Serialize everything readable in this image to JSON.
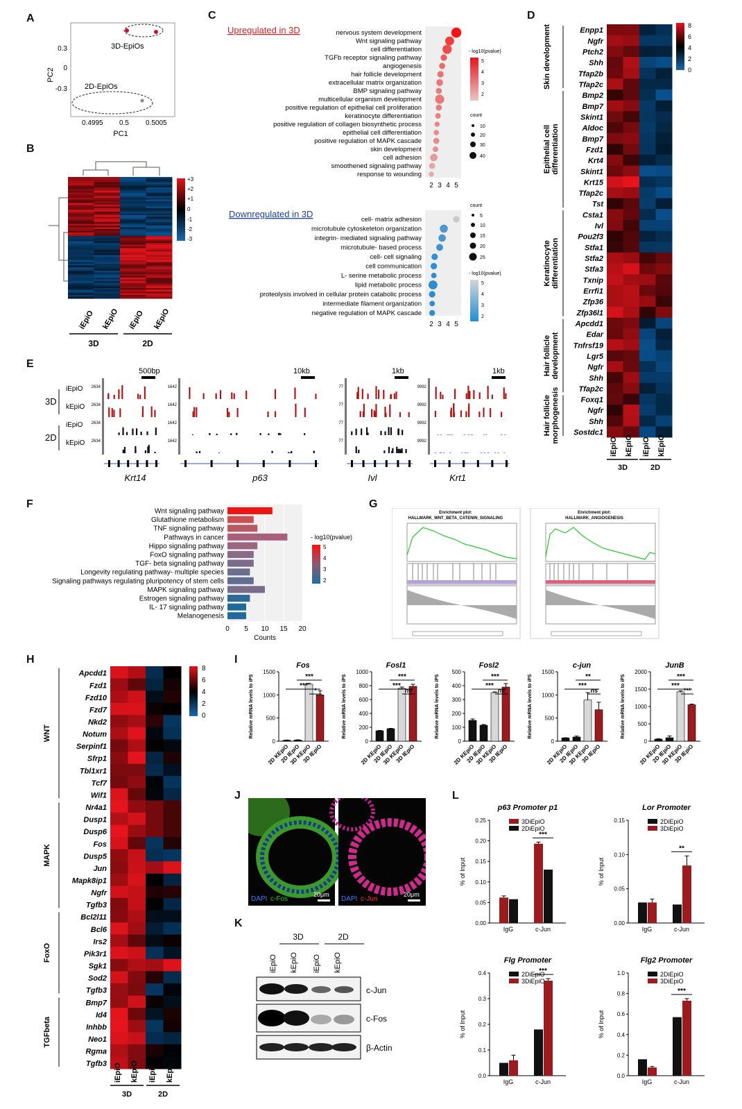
{
  "panel_letters": [
    "A",
    "B",
    "C",
    "D",
    "E",
    "F",
    "G",
    "H",
    "I",
    "J",
    "K",
    "L"
  ],
  "colors": {
    "red": "#c8102e",
    "dark_red": "#9b1b1e",
    "gray_bar": "#cfcfcf",
    "black": "#111111",
    "blue": "#1f5fa0",
    "heat_low": "#0a4d8c",
    "heat_mid": "#000000",
    "heat_high": "#e8141c",
    "green": "#22cc22"
  },
  "panel_a": {
    "xlabel": "PC1",
    "ylabel": "PC2",
    "x_ticks": [
      "0.4995",
      "0.5",
      "0.5005"
    ],
    "y_ticks": [
      "0.3",
      "0",
      "-0.3"
    ],
    "group_labels": [
      "3D-EpiOs",
      "2D-EpiOs"
    ]
  },
  "panel_b": {
    "scale_ticks": [
      "+3",
      "+2",
      "+1",
      "0",
      "-1",
      "-2",
      "-3"
    ],
    "columns": [
      "iEpiO",
      "kEpiO",
      "iEpiO",
      "kEpiO"
    ],
    "groups": [
      "3D",
      "2D"
    ]
  },
  "panel_c": {
    "up_title": "Upregulated  in 3D",
    "up_terms": [
      "nervous system development",
      "Wnt signaling pathway",
      "cell differentiation",
      "TGFb receptor signaling pathway",
      "angiogenesis",
      "hair follicle development",
      "extracellular matrix organization",
      "BMP signaling pathway",
      "multicellular organism development",
      "positive regulation of epithelial cell proliferation",
      "keratinocyte differentiation",
      "positive regulation of collagen biosynthetic process",
      "epithelial cell differentiation",
      "positive regulation of MAPK cascade",
      "skin development",
      "cell adhesion",
      "smoothened signaling pathway",
      "response to wounding"
    ],
    "up_x_ticks": [
      "2",
      "3",
      "4",
      "5"
    ],
    "up_legend_title": "- log10(pvalue)",
    "up_legend_ticks": [
      "5",
      "4",
      "3",
      "2"
    ],
    "count_title": "count",
    "up_count_ticks": [
      "10",
      "20",
      "30",
      "40"
    ],
    "down_title": "Downregulated  in 3D",
    "down_terms": [
      "cell- matrix adhesion",
      "microtubule cytoskeleton organization",
      "integrin- mediated signaling pathway",
      "microtubule- based process",
      "cell- cell signaling",
      "cell communication",
      "L- serine metabolic process",
      "lipid metabolic process",
      "proteolysis involved in cellular protein catabolic process",
      "intermediate filament organization",
      "negative regulation of MAPK cascade"
    ],
    "down_x_ticks": [
      "2",
      "3",
      "4",
      "5"
    ],
    "down_count_ticks": [
      "5",
      "10",
      "15",
      "20",
      "25"
    ],
    "down_legend_ticks": [
      "5",
      "4",
      "3",
      "2"
    ]
  },
  "panel_d": {
    "groups": [
      "Skin development",
      "Epithelial cell differentiation",
      "Keratinocyte differentiation",
      "Hair follicle development",
      "Hair follicle morphogenesis"
    ],
    "genes": [
      "Enpp1",
      "Ngfr",
      "Ptch2",
      "Shh",
      "Tfap2b",
      "Tfap2c",
      "Bmp2",
      "Bmp7",
      "Skint1",
      "Aldoc",
      "Bmp7",
      "Fzd1",
      "Krt4",
      "Skint1",
      "Krt15",
      "Tfap2c",
      "Tst",
      "Csta1",
      "Ivl",
      "Pou2f3",
      "Stfa1",
      "Stfa2",
      "Stfa3",
      "Txnip",
      "Errfi1",
      "Zfp36",
      "Zfp36l1",
      "Apcdd1",
      "Edar",
      "Tnfrsf19",
      "Lgr5",
      "Ngfr",
      "Shh",
      "Tfap2c",
      "Foxq1",
      "Ngfr",
      "Shh",
      "Sostdc1"
    ],
    "scale_ticks": [
      "8",
      "6",
      "4",
      "2",
      "0"
    ],
    "columns": [
      "iEpiO",
      "kEpiO",
      "iEpiO",
      "kEpiO"
    ],
    "col_groups": [
      "3D",
      "2D"
    ]
  },
  "panel_e": {
    "scale_labels": [
      "500bp",
      "10kb",
      "1kb",
      "1kb"
    ],
    "genes": [
      "Krt14",
      "p63",
      "Ivl",
      "Krt1"
    ],
    "row_labels": [
      "iEpiO",
      "kEpiO",
      "iEpiO",
      "kEpiO"
    ],
    "row_groups": [
      "3D",
      "2D"
    ],
    "track_max": [
      "2634",
      "1642",
      "77",
      "9992"
    ]
  },
  "panel_f": {
    "terms": [
      "Wnt signaling pathway",
      "Glutathione metabolism",
      "TNF signaling pathway",
      "Pathways in cancer",
      "Hippo signaling pathway",
      "FoxO signaling pathway",
      "TGF- beta signaling pathway",
      "Longevity regulating pathway- multiple species",
      "Signaling pathways regulating pluripotency of stem cells",
      "MAPK signaling pathway",
      "Estrogen signaling pathway",
      "IL- 17 signaling pathway",
      "Melanogenesis"
    ],
    "x_ticks": [
      "0",
      "5",
      "10",
      "15",
      "20"
    ],
    "xlabel": "Counts",
    "legend_title": "- log10(pvalue)",
    "legend_ticks": [
      "5",
      "4",
      "3",
      "2"
    ]
  },
  "panel_g": {
    "left_header": "Enrichment plot:",
    "left_title": "HALLMARK_WNT_BETA_CATENIN_SIGNALING",
    "right_header": "Enrichment plot:",
    "right_title": "HALLMARK_ANGIOGENESIS"
  },
  "panel_h": {
    "groups": [
      "WNT",
      "MAPK",
      "FoxO",
      "TGFbeta"
    ],
    "genes": [
      "Apcdd1",
      "Fzd1",
      "Fzd10",
      "Fzd7",
      "Nkd2",
      "Notum",
      "Serpinf1",
      "Sfrp1",
      "Tbl1xr1",
      "Tcf7",
      "Wif1",
      "Nr4a1",
      "Dusp1",
      "Dusp6",
      "Fos",
      "Dusp5",
      "Jun",
      "Mapk8ip1",
      "Ngfr",
      "Tgfb3",
      "Bcl2l11",
      "Bcl6",
      "Irs2",
      "Pik3r1",
      "Sgk1",
      "Sod2",
      "Tgfb3",
      "Bmp7",
      "Id4",
      "Inhbb",
      "Neo1",
      "Rgma",
      "Tgfb3"
    ],
    "scale_ticks": [
      "8",
      "6",
      "4",
      "2",
      "0"
    ],
    "columns": [
      "iEpiO",
      "kEpiO",
      "iEpiO",
      "kEpiO"
    ],
    "col_groups": [
      "3D",
      "2D"
    ]
  },
  "panel_i": {
    "ylabel": "Relative mRNA levels to iPS",
    "categories": [
      "2D KEpiO",
      "2D IEpiO",
      "3D KEpiO",
      "3D IEpiO"
    ],
    "charts": [
      {
        "title": "Fos",
        "ticks": [
          "0",
          "500",
          "1000",
          "1500"
        ],
        "ymax": 1500,
        "values": [
          20,
          25,
          1230,
          1000
        ],
        "errs": [
          5,
          5,
          20,
          90
        ],
        "sig": [
          "***",
          "***",
          "*"
        ]
      },
      {
        "title": "Fosl1",
        "ticks": [
          "0",
          "200",
          "400",
          "600",
          "800",
          "1000"
        ],
        "ymax": 1000,
        "values": [
          150,
          180,
          760,
          790
        ],
        "errs": [
          5,
          5,
          20,
          30
        ],
        "sig": [
          "***",
          "***",
          "ns"
        ]
      },
      {
        "title": "Fosl2",
        "ticks": [
          "0",
          "100",
          "200",
          "300",
          "400",
          "500"
        ],
        "ymax": 500,
        "values": [
          150,
          115,
          350,
          390
        ],
        "errs": [
          10,
          5,
          5,
          25
        ],
        "sig": [
          "***",
          "***",
          "ns"
        ]
      },
      {
        "title": "c-jun",
        "ticks": [
          "0",
          "500",
          "1000",
          "1500"
        ],
        "ymax": 1500,
        "values": [
          70,
          90,
          890,
          680
        ],
        "errs": [
          5,
          20,
          160,
          160
        ],
        "sig": [
          "***",
          "**",
          "ns"
        ]
      },
      {
        "title": "JunB",
        "ticks": [
          "0",
          "500",
          "1000",
          "1500",
          "2000"
        ],
        "ymax": 2000,
        "values": [
          60,
          100,
          1420,
          1050
        ],
        "errs": [
          10,
          50,
          30,
          20
        ],
        "sig": [
          "***",
          "***",
          "***"
        ]
      }
    ]
  },
  "panel_j": {
    "left_label_blue": "DAPI",
    "left_label_color": "c-Fos",
    "right_label_blue": "DAPI",
    "right_label_color": "c-Jun",
    "scale": "20μm"
  },
  "panel_k": {
    "col_groups": [
      "3D",
      "2D"
    ],
    "columns": [
      "iEpiO",
      "kEpiO",
      "iEpiO",
      "kEpiO"
    ],
    "bands": [
      "c-Jun",
      "c-Fos",
      "β-Actin"
    ]
  },
  "panel_l": {
    "ylabel": "% of Input",
    "categories": [
      "IgG",
      "c-Jun"
    ],
    "charts": [
      {
        "title": "p63 Promoter p1",
        "ticks": [
          "0.00",
          "0.05",
          "0.10",
          "0.15",
          "0.20",
          "0.25"
        ],
        "ymax": 0.25,
        "legend": [
          "3DiEpiO",
          "2DiEpiO"
        ],
        "red": [
          0.062,
          0.193
        ],
        "black": [
          0.058,
          0.13
        ],
        "errs": [
          0.004,
          0.004
        ],
        "sig": "***"
      },
      {
        "title": "Lor Promoter",
        "ticks": [
          "0.00",
          "0.05",
          "0.10",
          "0.15"
        ],
        "ymax": 0.15,
        "legend": [
          "2DiEpiO",
          "3DiEpiO"
        ],
        "red": [
          0.03,
          0.084
        ],
        "black": [
          0.03,
          0.027
        ],
        "errs": [
          0.005,
          0.014
        ],
        "sig": "**"
      },
      {
        "title": "Flg Promoter",
        "ticks": [
          "0.0",
          "0.1",
          "0.2",
          "0.3",
          "0.4"
        ],
        "ymax": 0.4,
        "legend": [
          "2DiEpiO",
          "3DiEpiO"
        ],
        "red": [
          0.06,
          0.37
        ],
        "black": [
          0.05,
          0.18
        ],
        "errs": [
          0.02,
          0.008
        ],
        "sig": "***"
      },
      {
        "title": "Flg2 Promoter",
        "ticks": [
          "0.0",
          "0.2",
          "0.4",
          "0.6",
          "0.8",
          "1.0"
        ],
        "ymax": 1.0,
        "legend": [
          "2DiEpiO",
          "3DiEpiO"
        ],
        "red": [
          0.08,
          0.73
        ],
        "black": [
          0.16,
          0.57
        ],
        "errs": [
          0.01,
          0.02
        ],
        "sig": "***"
      }
    ]
  }
}
